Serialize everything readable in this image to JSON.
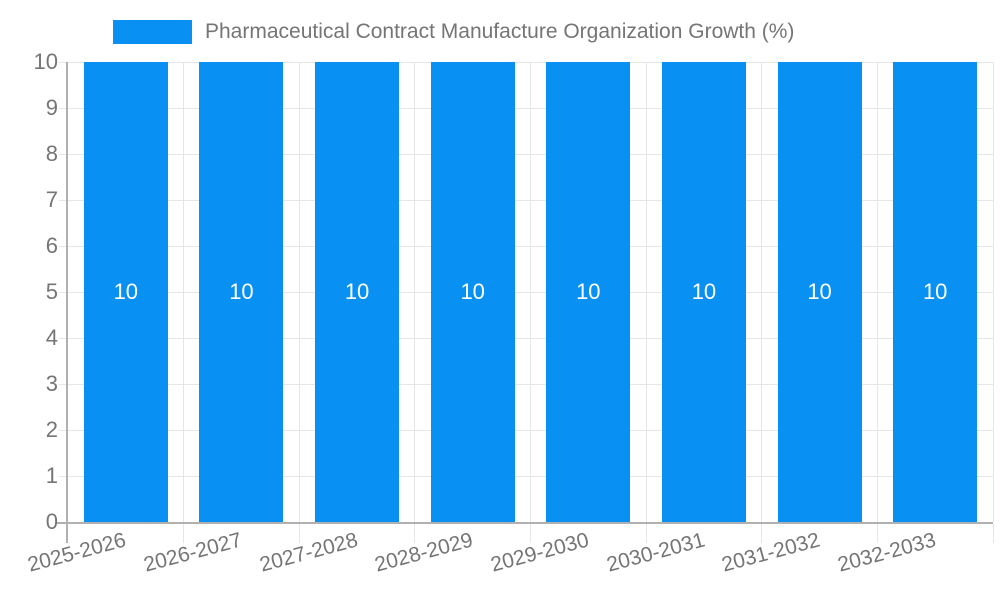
{
  "chart_data": {
    "type": "bar",
    "title": "Pharmaceutical Contract Manufacture Organization Growth (%)",
    "categories": [
      "2025-2026",
      "2026-2027",
      "2027-2028",
      "2028-2029",
      "2029-2030",
      "2030-2031",
      "2031-2032",
      "2032-2033"
    ],
    "series": [
      {
        "name": "Pharmaceutical Contract Manufacture Organization Growth (%)",
        "values": [
          10,
          10,
          10,
          10,
          10,
          10,
          10,
          10
        ]
      }
    ],
    "bar_labels": [
      "10",
      "10",
      "10",
      "10",
      "10",
      "10",
      "10",
      "10"
    ],
    "xlabel": "",
    "ylabel": "",
    "ylim": [
      0,
      10
    ],
    "y_ticks": [
      0,
      1,
      2,
      3,
      4,
      5,
      6,
      7,
      8,
      9,
      10
    ],
    "grid": true,
    "legend_position": "top-left",
    "colors": {
      "bar": "#0890f2",
      "text": "#757575",
      "grid": "#e6e6e6",
      "axis": "#b0b0b0",
      "value_label": "#ffffff",
      "background": "#ffffff"
    }
  }
}
